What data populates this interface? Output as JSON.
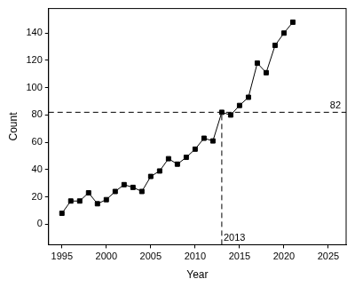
{
  "chart_data": {
    "type": "line",
    "x": [
      1995,
      1996,
      1997,
      1998,
      1999,
      2000,
      2001,
      2002,
      2003,
      2004,
      2005,
      2006,
      2007,
      2008,
      2009,
      2010,
      2011,
      2012,
      2013,
      2014,
      2015,
      2016,
      2017,
      2018,
      2019,
      2020,
      2021
    ],
    "values": [
      8,
      17,
      17,
      23,
      15,
      18,
      24,
      29,
      27,
      24,
      35,
      39,
      48,
      44,
      49,
      55,
      63,
      61,
      82,
      80,
      87,
      93,
      118,
      111,
      131,
      140,
      148
    ],
    "color": "#000000",
    "marker": "square",
    "line_style": "solid",
    "x_label": "Year",
    "y_label": "Count",
    "xlim": [
      1993.5,
      2027
    ],
    "xticks": [
      1995,
      2000,
      2005,
      2010,
      2015,
      2020,
      2025
    ],
    "ylim": [
      -15,
      158
    ],
    "yticks": [
      0,
      20,
      40,
      60,
      80,
      100,
      120,
      140
    ],
    "grid": false,
    "annotations": [
      {
        "type": "hline",
        "value": 82,
        "label": "82"
      },
      {
        "type": "vline",
        "value": 2013,
        "label": "2013"
      }
    ]
  }
}
